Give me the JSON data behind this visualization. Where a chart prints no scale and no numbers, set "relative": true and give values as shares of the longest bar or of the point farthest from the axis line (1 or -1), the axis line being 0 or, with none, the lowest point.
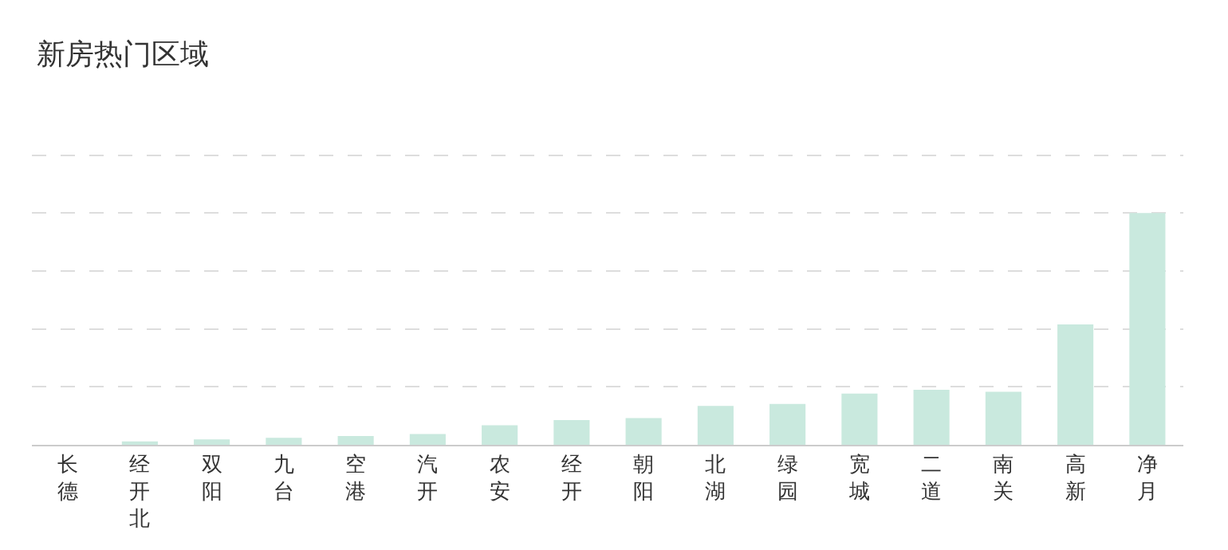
{
  "chart_data": {
    "type": "bar",
    "title": "新房热门区域",
    "relative": true,
    "grid": "y",
    "color": "#c9e9de",
    "categories": [
      "长德",
      "经开北",
      "双阳",
      "九台",
      "空港",
      "汽开",
      "农安",
      "经开",
      "朝阳",
      "北湖",
      "绿园",
      "宽城",
      "二道",
      "南关",
      "高新",
      "净月"
    ],
    "values": [
      0,
      0.015,
      0.023,
      0.03,
      0.038,
      0.046,
      0.084,
      0.107,
      0.115,
      0.168,
      0.176,
      0.221,
      0.237,
      0.229,
      0.519,
      1
    ]
  }
}
